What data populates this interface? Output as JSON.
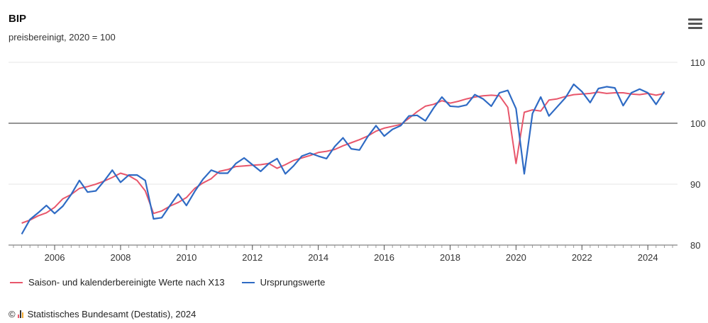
{
  "header": {
    "title": "BIP",
    "subtitle": "preisbereinigt, 2020 = 100",
    "menu_icon": "hamburger-menu-icon"
  },
  "legend": {
    "series1_label": "Saison- und kalenderbereinigte Werte nach X13",
    "series2_label": "Ursprungswerte"
  },
  "footer": {
    "copyright": "©",
    "source": "Statistisches Bundesamt (Destatis), 2024"
  },
  "colors": {
    "adjusted": "#e8566b",
    "original": "#2f6bc4",
    "reference_line": "#555555",
    "grid": "#e6e6e6"
  },
  "chart_data": {
    "type": "line",
    "title": "BIP",
    "subtitle": "preisbereinigt, 2020 = 100",
    "xlabel": "",
    "ylabel": "",
    "ylim": [
      80,
      110
    ],
    "xlim": [
      2004.6,
      2024.9
    ],
    "y_ticks": [
      80,
      90,
      100,
      110
    ],
    "x_ticks": [
      2006,
      2008,
      2010,
      2012,
      2014,
      2016,
      2018,
      2020,
      2022,
      2024
    ],
    "reference_line": 100,
    "grid": true,
    "legend_position": "bottom-left",
    "series": [
      {
        "name": "Saison- und kalenderbereinigte Werte nach X13",
        "color": "#e8566b",
        "x": [
          2005.0,
          2005.25,
          2005.5,
          2005.75,
          2006.0,
          2006.25,
          2006.5,
          2006.75,
          2007.0,
          2007.25,
          2007.5,
          2007.75,
          2008.0,
          2008.25,
          2008.5,
          2008.75,
          2009.0,
          2009.25,
          2009.5,
          2009.75,
          2010.0,
          2010.25,
          2010.5,
          2010.75,
          2011.0,
          2011.25,
          2011.5,
          2011.75,
          2012.0,
          2012.25,
          2012.5,
          2012.75,
          2013.0,
          2013.25,
          2013.5,
          2013.75,
          2014.0,
          2014.25,
          2014.5,
          2014.75,
          2015.0,
          2015.25,
          2015.5,
          2015.75,
          2016.0,
          2016.25,
          2016.5,
          2016.75,
          2017.0,
          2017.25,
          2017.5,
          2017.75,
          2018.0,
          2018.25,
          2018.5,
          2018.75,
          2019.0,
          2019.25,
          2019.5,
          2019.75,
          2020.0,
          2020.25,
          2020.5,
          2020.75,
          2021.0,
          2021.25,
          2021.5,
          2021.75,
          2022.0,
          2022.25,
          2022.5,
          2022.75,
          2023.0,
          2023.25,
          2023.5,
          2023.75,
          2024.0,
          2024.25,
          2024.5
        ],
        "values": [
          83.6,
          84.1,
          84.8,
          85.3,
          86.2,
          87.6,
          88.3,
          89.3,
          89.6,
          90.0,
          90.5,
          91.1,
          91.8,
          91.4,
          90.6,
          88.9,
          85.2,
          85.6,
          86.4,
          87.0,
          87.8,
          89.3,
          90.2,
          90.9,
          92.1,
          92.4,
          92.9,
          93.0,
          93.1,
          93.2,
          93.4,
          92.6,
          93.2,
          93.9,
          94.3,
          94.7,
          95.2,
          95.4,
          95.7,
          96.3,
          96.8,
          97.3,
          97.9,
          98.7,
          99.2,
          99.5,
          99.8,
          100.8,
          101.9,
          102.8,
          103.1,
          103.7,
          103.3,
          103.6,
          104.0,
          104.3,
          104.5,
          104.6,
          104.5,
          102.6,
          93.4,
          101.8,
          102.2,
          102.0,
          103.8,
          104.0,
          104.4,
          104.7,
          104.8,
          104.9,
          105.1,
          104.9,
          105.0,
          105.0,
          104.8,
          104.7,
          104.9,
          104.6,
          104.9
        ]
      },
      {
        "name": "Ursprungswerte",
        "color": "#2f6bc4",
        "x": [
          2005.0,
          2005.25,
          2005.5,
          2005.75,
          2006.0,
          2006.25,
          2006.5,
          2006.75,
          2007.0,
          2007.25,
          2007.5,
          2007.75,
          2008.0,
          2008.25,
          2008.5,
          2008.75,
          2009.0,
          2009.25,
          2009.5,
          2009.75,
          2010.0,
          2010.25,
          2010.5,
          2010.75,
          2011.0,
          2011.25,
          2011.5,
          2011.75,
          2012.0,
          2012.25,
          2012.5,
          2012.75,
          2013.0,
          2013.25,
          2013.5,
          2013.75,
          2014.0,
          2014.25,
          2014.5,
          2014.75,
          2015.0,
          2015.25,
          2015.5,
          2015.75,
          2016.0,
          2016.25,
          2016.5,
          2016.75,
          2017.0,
          2017.25,
          2017.5,
          2017.75,
          2018.0,
          2018.25,
          2018.5,
          2018.75,
          2019.0,
          2019.25,
          2019.5,
          2019.75,
          2020.0,
          2020.25,
          2020.5,
          2020.75,
          2021.0,
          2021.25,
          2021.5,
          2021.75,
          2022.0,
          2022.25,
          2022.5,
          2022.75,
          2023.0,
          2023.25,
          2023.5,
          2023.75,
          2024.0,
          2024.25,
          2024.5
        ],
        "values": [
          81.8,
          84.2,
          85.3,
          86.5,
          85.2,
          86.4,
          88.3,
          90.6,
          88.7,
          88.9,
          90.5,
          92.3,
          90.3,
          91.5,
          91.5,
          90.6,
          84.3,
          84.5,
          86.5,
          88.4,
          86.5,
          88.8,
          90.8,
          92.3,
          91.8,
          91.8,
          93.4,
          94.3,
          93.2,
          92.1,
          93.4,
          94.2,
          91.7,
          93.0,
          94.6,
          95.1,
          94.6,
          94.2,
          96.2,
          97.6,
          95.8,
          95.6,
          97.8,
          99.6,
          97.9,
          99.0,
          99.6,
          101.2,
          101.3,
          100.4,
          102.5,
          104.3,
          102.8,
          102.7,
          103.0,
          104.7,
          104.0,
          102.8,
          105.0,
          105.4,
          102.4,
          91.7,
          101.6,
          104.3,
          101.2,
          102.7,
          104.2,
          106.4,
          105.2,
          103.4,
          105.7,
          106.0,
          105.8,
          102.9,
          105.0,
          105.6,
          105.0,
          103.1,
          105.2
        ]
      }
    ]
  }
}
